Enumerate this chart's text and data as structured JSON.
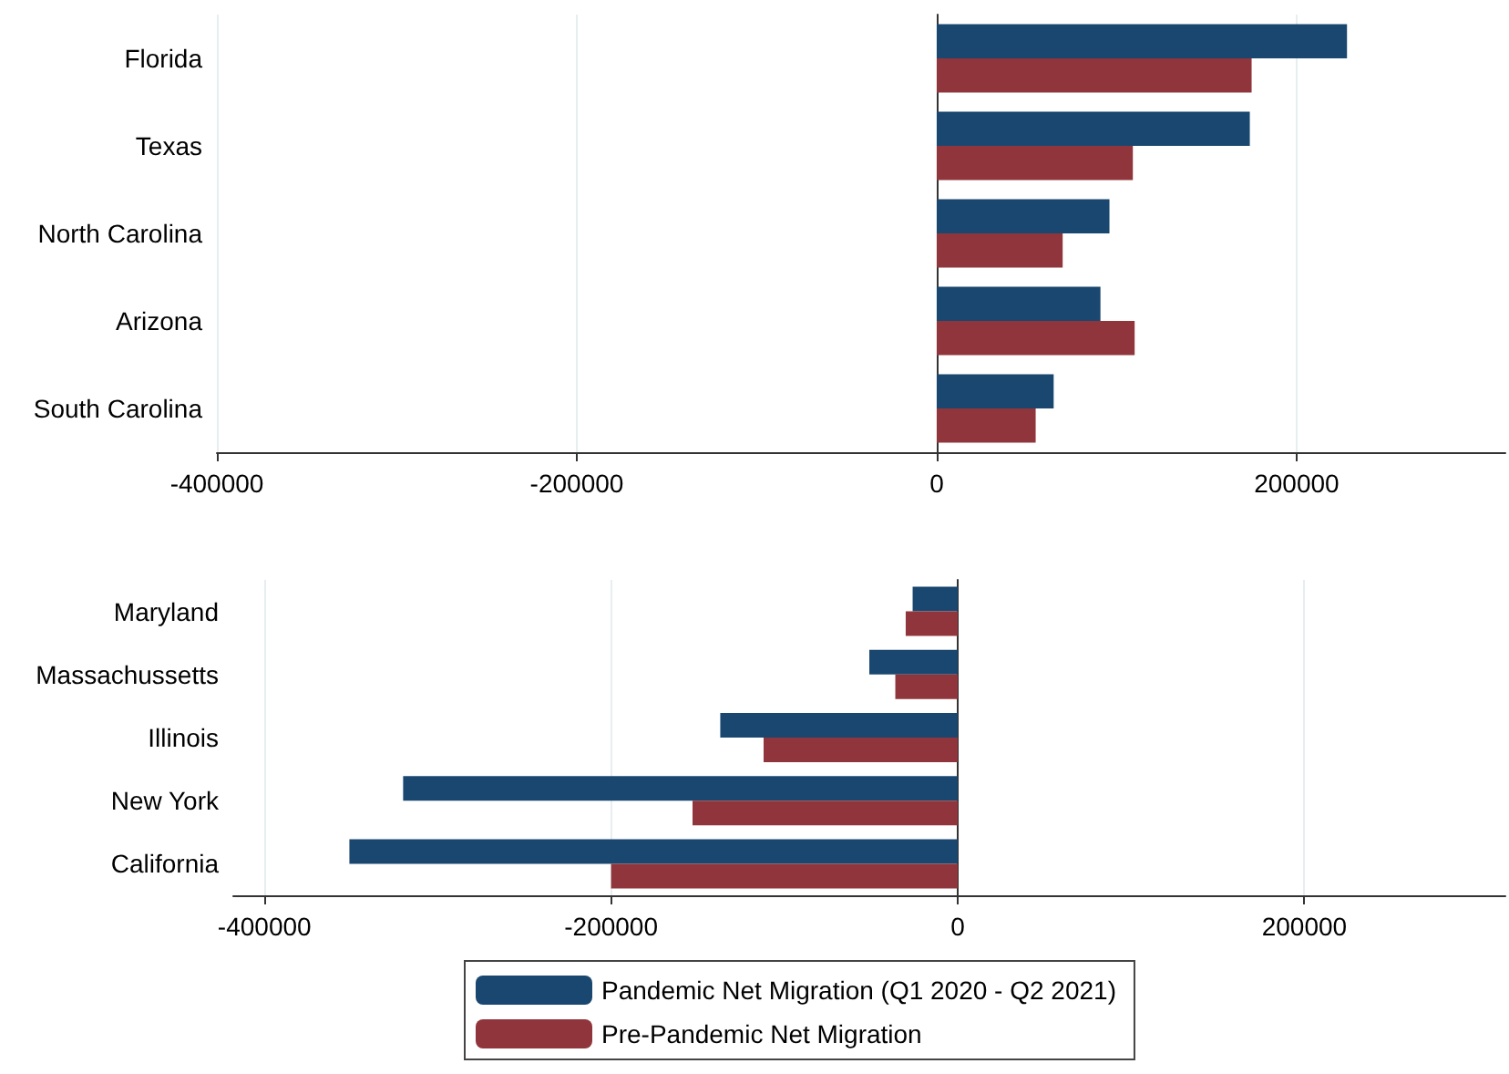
{
  "chart_data": [
    {
      "type": "bar",
      "orientation": "horizontal",
      "categories": [
        "Florida",
        "Texas",
        "North Carolina",
        "Arizona",
        "South Carolina"
      ],
      "series": [
        {
          "color": "#1a476f",
          "values": [
            228000,
            174000,
            96000,
            91000,
            65000
          ]
        },
        {
          "color": "#90353b",
          "values": [
            175000,
            109000,
            70000,
            110000,
            55000
          ]
        }
      ],
      "xlim": [
        -400000,
        316000
      ],
      "xticks": [
        -400000,
        -200000,
        0,
        200000
      ],
      "grid": "x",
      "legend": false
    },
    {
      "type": "bar",
      "orientation": "horizontal",
      "categories": [
        "Maryland",
        "Massachussetts",
        "Illinois",
        "New York",
        "California"
      ],
      "series": [
        {
          "name": "Pandemic Net Migration (Q1 2020 - Q2 2021)",
          "color": "#1a476f",
          "values": [
            -26000,
            -51000,
            -137000,
            -320000,
            -351000
          ]
        },
        {
          "name": "Pre-Pandemic Net Migration",
          "color": "#90353b",
          "values": [
            -30000,
            -36000,
            -112000,
            -153000,
            -200000
          ]
        }
      ],
      "xlim": [
        -418000,
        316000
      ],
      "xticks": [
        -400000,
        -200000,
        0,
        200000
      ],
      "grid": "x",
      "legend": "bottom"
    }
  ]
}
